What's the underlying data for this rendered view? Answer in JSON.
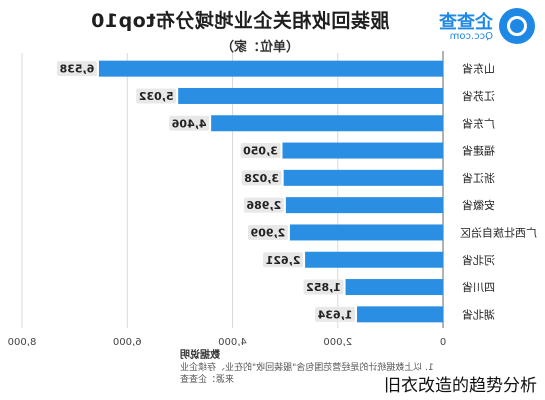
{
  "brand": {
    "name": "企查查",
    "domain": "Qcc.com",
    "icon": "qcc-logo-icon"
  },
  "chart_data": {
    "type": "bar",
    "orientation": "horizontal",
    "mirrored": true,
    "title": "服装回收相关企业地域分布top10",
    "unit": "（单位：家）",
    "categories": [
      "山东省",
      "江苏省",
      "广东省",
      "福建省",
      "浙江省",
      "安徽省",
      "广西壮族自治区",
      "河北省",
      "四川省",
      "湖北省"
    ],
    "values": [
      6538,
      5032,
      4406,
      3050,
      3028,
      2986,
      2909,
      2621,
      1852,
      1634
    ],
    "value_labels": [
      "6,538",
      "5,032",
      "4,406",
      "3,050",
      "3,028",
      "2,986",
      "2,909",
      "2,621",
      "1,852",
      "1,634"
    ],
    "xlim": [
      0,
      8000
    ],
    "xticks": [
      0,
      2000,
      4000,
      6000,
      8000
    ],
    "xtick_labels": [
      "0",
      "2,000",
      "4,000",
      "6,000",
      "8,000"
    ],
    "grid": true,
    "bar_color": "#2a8fe3",
    "label_bg": "#e8e8e8"
  },
  "source": {
    "heading": "数据说明",
    "line1": "1. 以上数据统计的是经营范围包含\"服装回收\"的在业、存续企业",
    "line2": "来源：企查查"
  },
  "watermark": "旧衣改造的趋势分析"
}
